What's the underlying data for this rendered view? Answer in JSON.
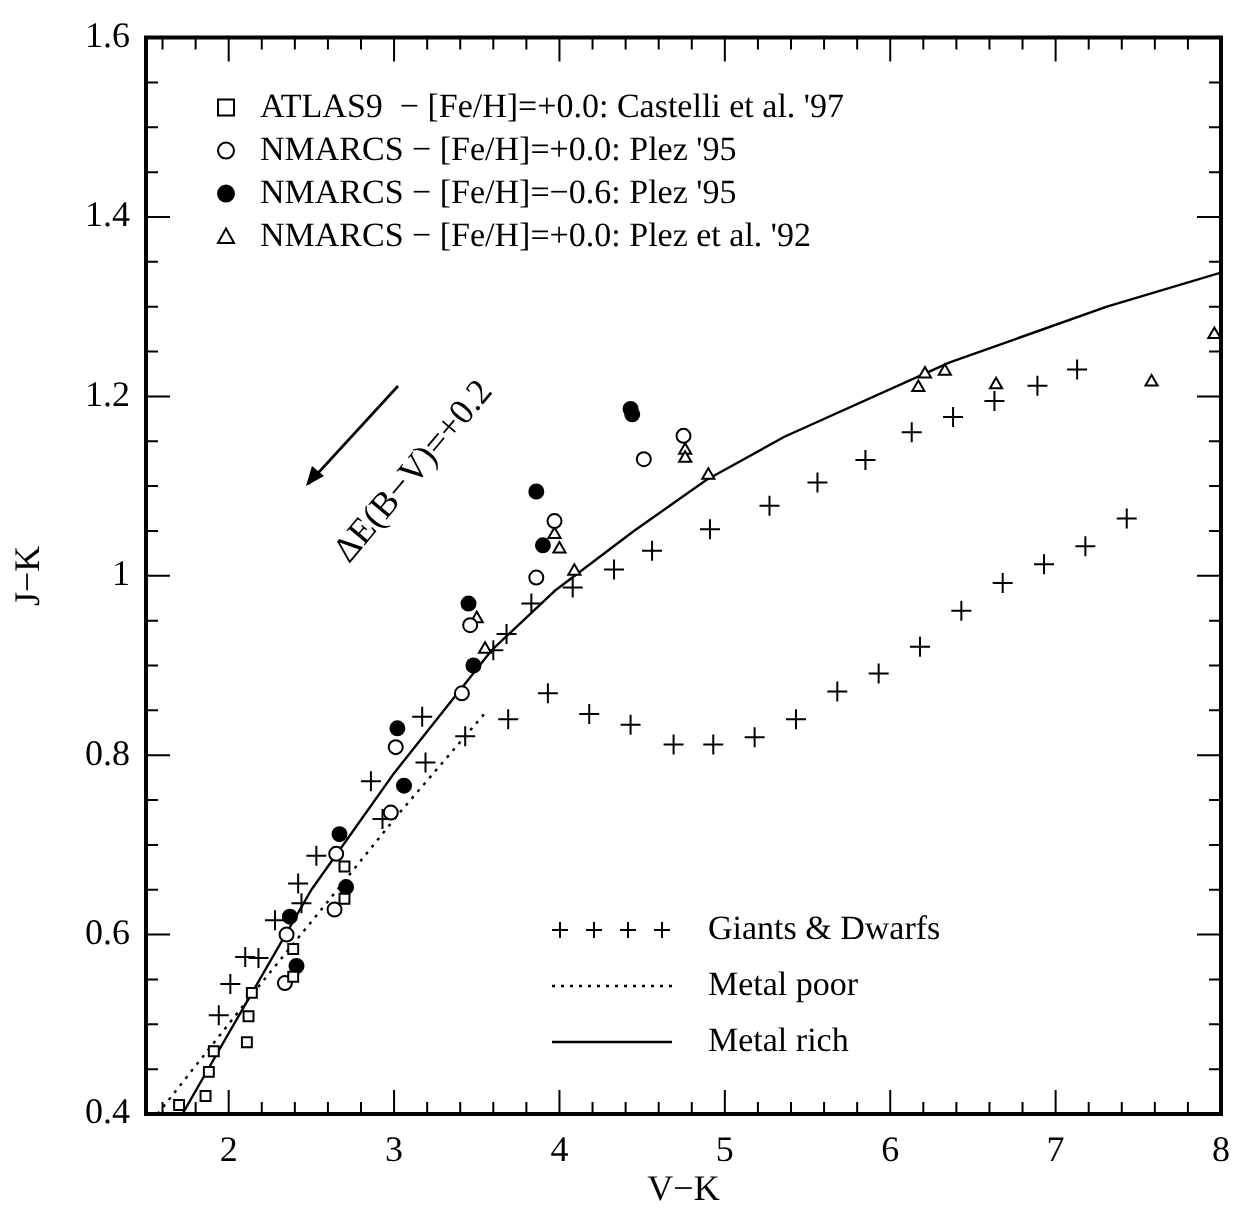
{
  "chart_data": {
    "type": "scatter",
    "xlabel": "V−K",
    "ylabel": "J−K",
    "xlim": [
      1.5,
      8
    ],
    "ylim": [
      0.4,
      1.6
    ],
    "xticks": [
      {
        "value": 1.6,
        "label": null
      },
      {
        "value": 1.8,
        "label": null
      },
      2,
      {
        "value": 2.2,
        "label": null
      },
      {
        "value": 2.4,
        "label": null
      },
      {
        "value": 2.6,
        "label": null
      },
      {
        "value": 2.8,
        "label": null
      },
      3,
      {
        "value": 3.2,
        "label": null
      },
      {
        "value": 3.4,
        "label": null
      },
      {
        "value": 3.6,
        "label": null
      },
      {
        "value": 3.8,
        "label": null
      },
      4,
      {
        "value": 4.2,
        "label": null
      },
      {
        "value": 4.4,
        "label": null
      },
      {
        "value": 4.6,
        "label": null
      },
      {
        "value": 4.8,
        "label": null
      },
      5,
      {
        "value": 5.2,
        "label": null
      },
      {
        "value": 5.4,
        "label": null
      },
      {
        "value": 5.6,
        "label": null
      },
      {
        "value": 5.8,
        "label": null
      },
      6,
      {
        "value": 6.2,
        "label": null
      },
      {
        "value": 6.4,
        "label": null
      },
      {
        "value": 6.6,
        "label": null
      },
      {
        "value": 6.8,
        "label": null
      },
      7,
      {
        "value": 7.2,
        "label": null
      },
      {
        "value": 7.4,
        "label": null
      },
      {
        "value": 7.6,
        "label": null
      },
      {
        "value": 7.8,
        "label": null
      },
      8
    ],
    "yticks": [
      0.4,
      {
        "value": 0.45,
        "label": null
      },
      {
        "value": 0.5,
        "label": null
      },
      {
        "value": 0.55,
        "label": null
      },
      0.6,
      {
        "value": 0.65,
        "label": null
      },
      {
        "value": 0.7,
        "label": null
      },
      {
        "value": 0.75,
        "label": null
      },
      0.8,
      {
        "value": 0.85,
        "label": null
      },
      {
        "value": 0.9,
        "label": null
      },
      {
        "value": 0.95,
        "label": null
      },
      1,
      {
        "value": 1.05,
        "label": null
      },
      {
        "value": 1.1,
        "label": null
      },
      {
        "value": 1.15,
        "label": null
      },
      1.2,
      {
        "value": 1.25,
        "label": null
      },
      {
        "value": 1.3,
        "label": null
      },
      {
        "value": 1.35,
        "label": null
      },
      1.4,
      {
        "value": 1.45,
        "label": null
      },
      {
        "value": 1.5,
        "label": null
      },
      {
        "value": 1.55,
        "label": null
      },
      1.6
    ],
    "legend": "top left",
    "annotations": [
      "ΔE(B−V)=+0.2"
    ],
    "series": [
      {
        "name": "ATLAS9  − [Fe/H]=+0.0: Castelli et al. '97",
        "marker": "square",
        "color": "#ffffff",
        "x": [
          1.7,
          1.86,
          1.88,
          1.91,
          2.11,
          2.12,
          2.14,
          2.39,
          2.39,
          2.7,
          2.7
        ],
        "values": [
          0.41,
          0.42,
          0.447,
          0.47,
          0.48,
          0.509,
          0.535,
          0.553,
          0.584,
          0.64,
          0.676
        ]
      },
      {
        "name": "NMARCS − [Fe/H]=+0.0: Plez '95",
        "marker": "circle",
        "color": "#ffffff",
        "x": [
          2.34,
          2.35,
          2.64,
          2.65,
          2.98,
          3.01,
          3.41,
          3.46,
          3.86,
          3.97,
          4.51,
          4.75
        ],
        "values": [
          0.546,
          0.6,
          0.628,
          0.69,
          0.736,
          0.809,
          0.869,
          0.945,
          0.998,
          1.061,
          1.13,
          1.156
        ]
      },
      {
        "name": "NMARCS − [Fe/H]=−0.6: Plez '95",
        "marker": "circle",
        "color": "#000000",
        "x": [
          2.37,
          2.41,
          2.67,
          2.71,
          3.02,
          3.06,
          3.45,
          3.48,
          3.86,
          3.9,
          4.43,
          4.44
        ],
        "values": [
          0.62,
          0.565,
          0.712,
          0.653,
          0.83,
          0.766,
          0.969,
          0.9,
          1.094,
          1.034,
          1.186,
          1.18
        ]
      },
      {
        "name": "NMARCS − [Fe/H]=+0.0: Plez et al. '92",
        "marker": "triangle",
        "color": "#ffffff",
        "x": [
          3.5,
          3.55,
          3.97,
          4.0,
          4.09,
          4.76,
          4.76,
          4.9,
          6.17,
          6.21,
          6.33,
          6.64,
          7.58,
          7.96
        ],
        "values": [
          0.952,
          0.918,
          1.046,
          1.03,
          1.005,
          1.14,
          1.131,
          1.112,
          1.21,
          1.225,
          1.228,
          1.213,
          1.216,
          1.269
        ]
      },
      {
        "name": "Giants & Dwarfs",
        "marker": "cross",
        "color": "#000000",
        "x": [
          1.94,
          2.01,
          2.1,
          2.18,
          2.28,
          2.42,
          2.44,
          2.53,
          2.86,
          2.93,
          3.17,
          3.19,
          3.43,
          3.6,
          3.68,
          3.69,
          3.83,
          3.93,
          4.08,
          4.18,
          4.33,
          4.43,
          4.56,
          4.69,
          4.91,
          4.93,
          5.18,
          5.27,
          5.43,
          5.56,
          5.68,
          5.85,
          5.93,
          6.13,
          6.18,
          6.38,
          6.43,
          6.63,
          6.68,
          6.89,
          6.93,
          7.13,
          7.18,
          7.43
        ],
        "values": [
          0.51,
          0.545,
          0.575,
          0.574,
          0.616,
          0.657,
          0.635,
          0.688,
          0.771,
          0.729,
          0.843,
          0.792,
          0.821,
          0.917,
          0.935,
          0.84,
          0.969,
          0.869,
          0.987,
          0.846,
          1.007,
          0.834,
          1.028,
          0.812,
          1.052,
          0.812,
          0.82,
          1.078,
          0.84,
          1.104,
          0.871,
          1.129,
          0.891,
          1.16,
          0.921,
          1.177,
          0.961,
          1.195,
          0.992,
          1.212,
          1.013,
          1.23,
          1.033,
          1.064
        ]
      },
      {
        "name": "Metal poor",
        "type": "line",
        "marker": "none",
        "line_style": "dotted",
        "color": "#000000",
        "x": [
          1.57,
          2.14,
          2.6,
          3.02,
          3.55
        ],
        "values": [
          0.4,
          0.533,
          0.637,
          0.733,
          0.847
        ]
      },
      {
        "name": "Metal rich",
        "type": "line",
        "marker": "none",
        "line_style": "solid",
        "color": "#000000",
        "x": [
          1.72,
          2.0,
          2.5,
          3.0,
          3.59,
          3.97,
          4.45,
          4.89,
          5.36,
          6.36,
          7.31,
          8.0
        ],
        "values": [
          0.4,
          0.49,
          0.65,
          0.78,
          0.917,
          0.983,
          1.05,
          1.107,
          1.155,
          1.238,
          1.3,
          1.338
        ]
      }
    ]
  }
}
